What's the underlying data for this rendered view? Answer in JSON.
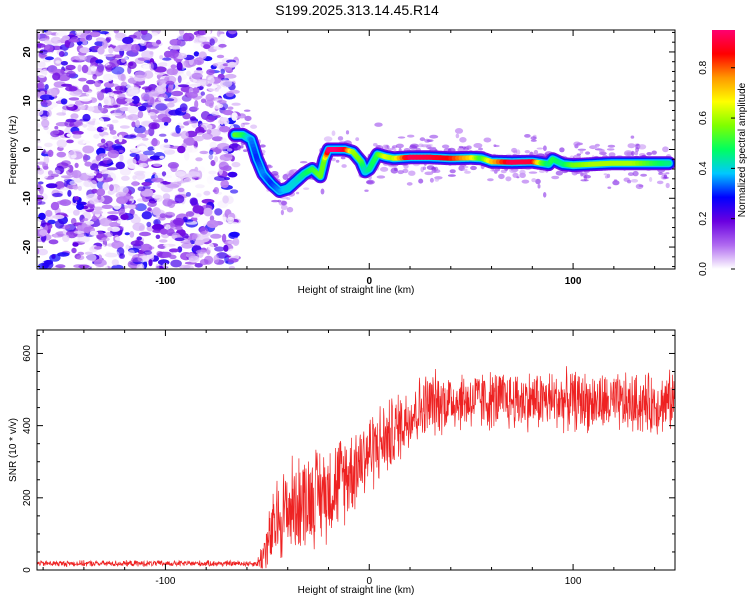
{
  "title": "S199.2025.313.14.45.R14",
  "chart_data": [
    {
      "type": "heatmap",
      "panel": "spectrogram",
      "xlabel": "Height of straight line (km)",
      "ylabel": "Frequency (Hz)",
      "xlim": [
        -163,
        150
      ],
      "ylim": [
        -24.5,
        24.5
      ],
      "x_ticks": [
        -100,
        0,
        100
      ],
      "x_tick_labels": [
        "-100",
        "0",
        "100"
      ],
      "y_ticks": [
        -20,
        -10,
        0,
        10,
        20
      ],
      "y_tick_labels": [
        "-20",
        "-10",
        "0",
        "10",
        "20"
      ],
      "noise_region_x": [
        -163,
        -65
      ],
      "noise_points": 1400,
      "ridge": {
        "x": [
          -66,
          -62,
          -58,
          -55,
          -52,
          -48,
          -44,
          -40,
          -36,
          -32,
          -28,
          -24,
          -22,
          -20,
          -16,
          -12,
          -8,
          -4,
          -2,
          0,
          4,
          8,
          12,
          20,
          30,
          40,
          50,
          55,
          60,
          70,
          80,
          85,
          88,
          90,
          95,
          100,
          110,
          120,
          130,
          140,
          147
        ],
        "y": [
          3,
          3,
          2,
          -2,
          -5,
          -7,
          -8.5,
          -8,
          -6.5,
          -5,
          -4,
          -5.5,
          -2,
          0,
          0,
          0,
          -0.5,
          -2.5,
          -4.5,
          -4,
          -1,
          -1.5,
          -1.8,
          -1.6,
          -1.6,
          -1.8,
          -1.7,
          -1.8,
          -2.5,
          -2.6,
          -2.5,
          -2.8,
          -3,
          -2,
          -3,
          -3.2,
          -3,
          -2.8,
          -2.8,
          -2.8,
          -2.8
        ],
        "amplitude": [
          0.55,
          0.5,
          0.35,
          0.3,
          0.35,
          0.3,
          0.35,
          0.4,
          0.4,
          0.45,
          0.5,
          0.55,
          0.55,
          0.95,
          0.95,
          0.9,
          0.6,
          0.55,
          0.4,
          0.45,
          0.5,
          0.65,
          0.6,
          0.92,
          0.9,
          0.85,
          0.7,
          0.5,
          0.7,
          0.92,
          0.9,
          0.55,
          0.45,
          0.5,
          0.45,
          0.55,
          0.6,
          0.6,
          0.6,
          0.5,
          0.45
        ]
      },
      "colorbar": {
        "label": "Normalized spectral amplitude",
        "range": [
          0,
          0.95
        ],
        "ticks": [
          0.0,
          0.2,
          0.4,
          0.6,
          0.8
        ],
        "tick_labels": [
          "0.0",
          "0.2",
          "0.4",
          "0.6",
          "0.8"
        ],
        "colors": [
          "#ffffff",
          "#b06af0",
          "#6a00e0",
          "#0000ff",
          "#00c8ff",
          "#00ff60",
          "#7fff00",
          "#ffff00",
          "#ff9900",
          "#ff0000",
          "#ff0070"
        ]
      }
    },
    {
      "type": "line",
      "panel": "snr",
      "xlabel": "Height of straight line (km)",
      "ylabel": "SNR (10 * v/v)",
      "xlim": [
        -163,
        150
      ],
      "ylim": [
        0,
        665
      ],
      "x_ticks": [
        -100,
        0,
        100
      ],
      "x_tick_labels": [
        "-100",
        "0",
        "100"
      ],
      "y_ticks": [
        0,
        200,
        400,
        600
      ],
      "y_tick_labels": [
        "0",
        "200",
        "400",
        "600"
      ],
      "series": [
        {
          "name": "SNR",
          "color": "#ee2222",
          "envelope_x": [
            -163,
            -55,
            -52,
            -45,
            -40,
            -30,
            -20,
            -10,
            0,
            10,
            20,
            30,
            40,
            60,
            80,
            100,
            120,
            140,
            150
          ],
          "envelope_mean": [
            18,
            18,
            40,
            140,
            170,
            200,
            220,
            270,
            330,
            370,
            430,
            460,
            470,
            470,
            470,
            470,
            460,
            460,
            470
          ],
          "envelope_spread": [
            8,
            8,
            60,
            120,
            130,
            130,
            130,
            120,
            110,
            100,
            90,
            90,
            80,
            80,
            80,
            80,
            80,
            80,
            80
          ],
          "samples": 1800
        }
      ]
    }
  ]
}
